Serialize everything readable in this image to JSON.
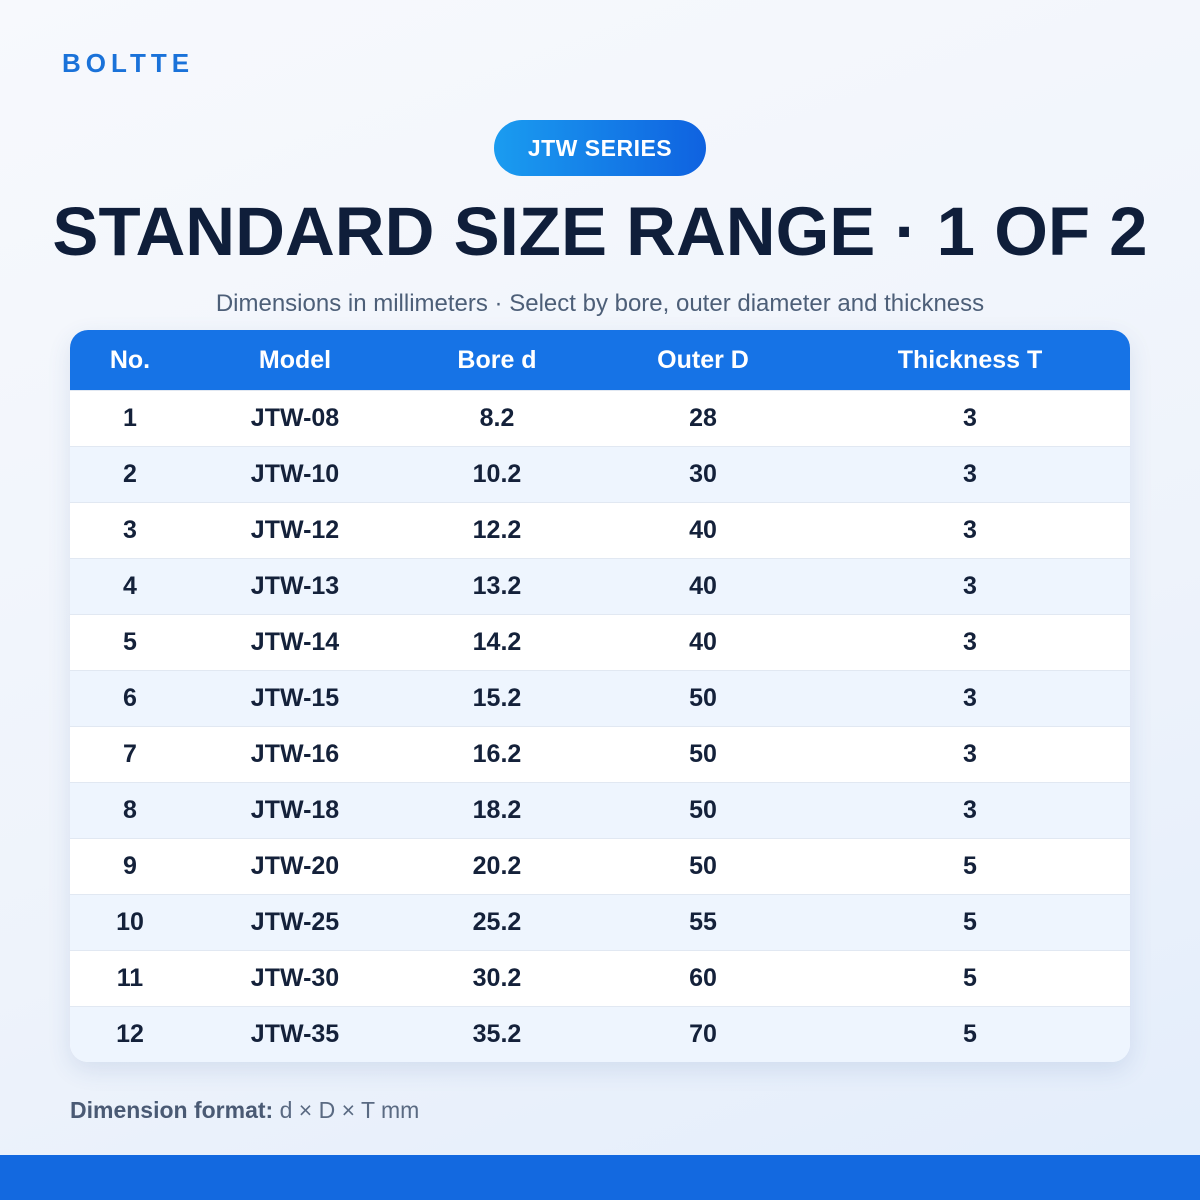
{
  "brand": "BOLTTE",
  "badge": "JTW SERIES",
  "title": "STANDARD SIZE RANGE · 1 OF 2",
  "subtitle": "Dimensions in millimeters · Select by bore, outer diameter and thickness",
  "table": {
    "headers": [
      "No.",
      "Model",
      "Bore d",
      "Outer D",
      "Thickness T"
    ],
    "rows": [
      [
        "1",
        "JTW-08",
        "8.2",
        "28",
        "3"
      ],
      [
        "2",
        "JTW-10",
        "10.2",
        "30",
        "3"
      ],
      [
        "3",
        "JTW-12",
        "12.2",
        "40",
        "3"
      ],
      [
        "4",
        "JTW-13",
        "13.2",
        "40",
        "3"
      ],
      [
        "5",
        "JTW-14",
        "14.2",
        "40",
        "3"
      ],
      [
        "6",
        "JTW-15",
        "15.2",
        "50",
        "3"
      ],
      [
        "7",
        "JTW-16",
        "16.2",
        "50",
        "3"
      ],
      [
        "8",
        "JTW-18",
        "18.2",
        "50",
        "3"
      ],
      [
        "9",
        "JTW-20",
        "20.2",
        "50",
        "5"
      ],
      [
        "10",
        "JTW-25",
        "25.2",
        "55",
        "5"
      ],
      [
        "11",
        "JTW-30",
        "30.2",
        "60",
        "5"
      ],
      [
        "12",
        "JTW-35",
        "35.2",
        "70",
        "5"
      ]
    ]
  },
  "footer": {
    "label": "Dimension format:",
    "text": "d × D × T mm"
  }
}
